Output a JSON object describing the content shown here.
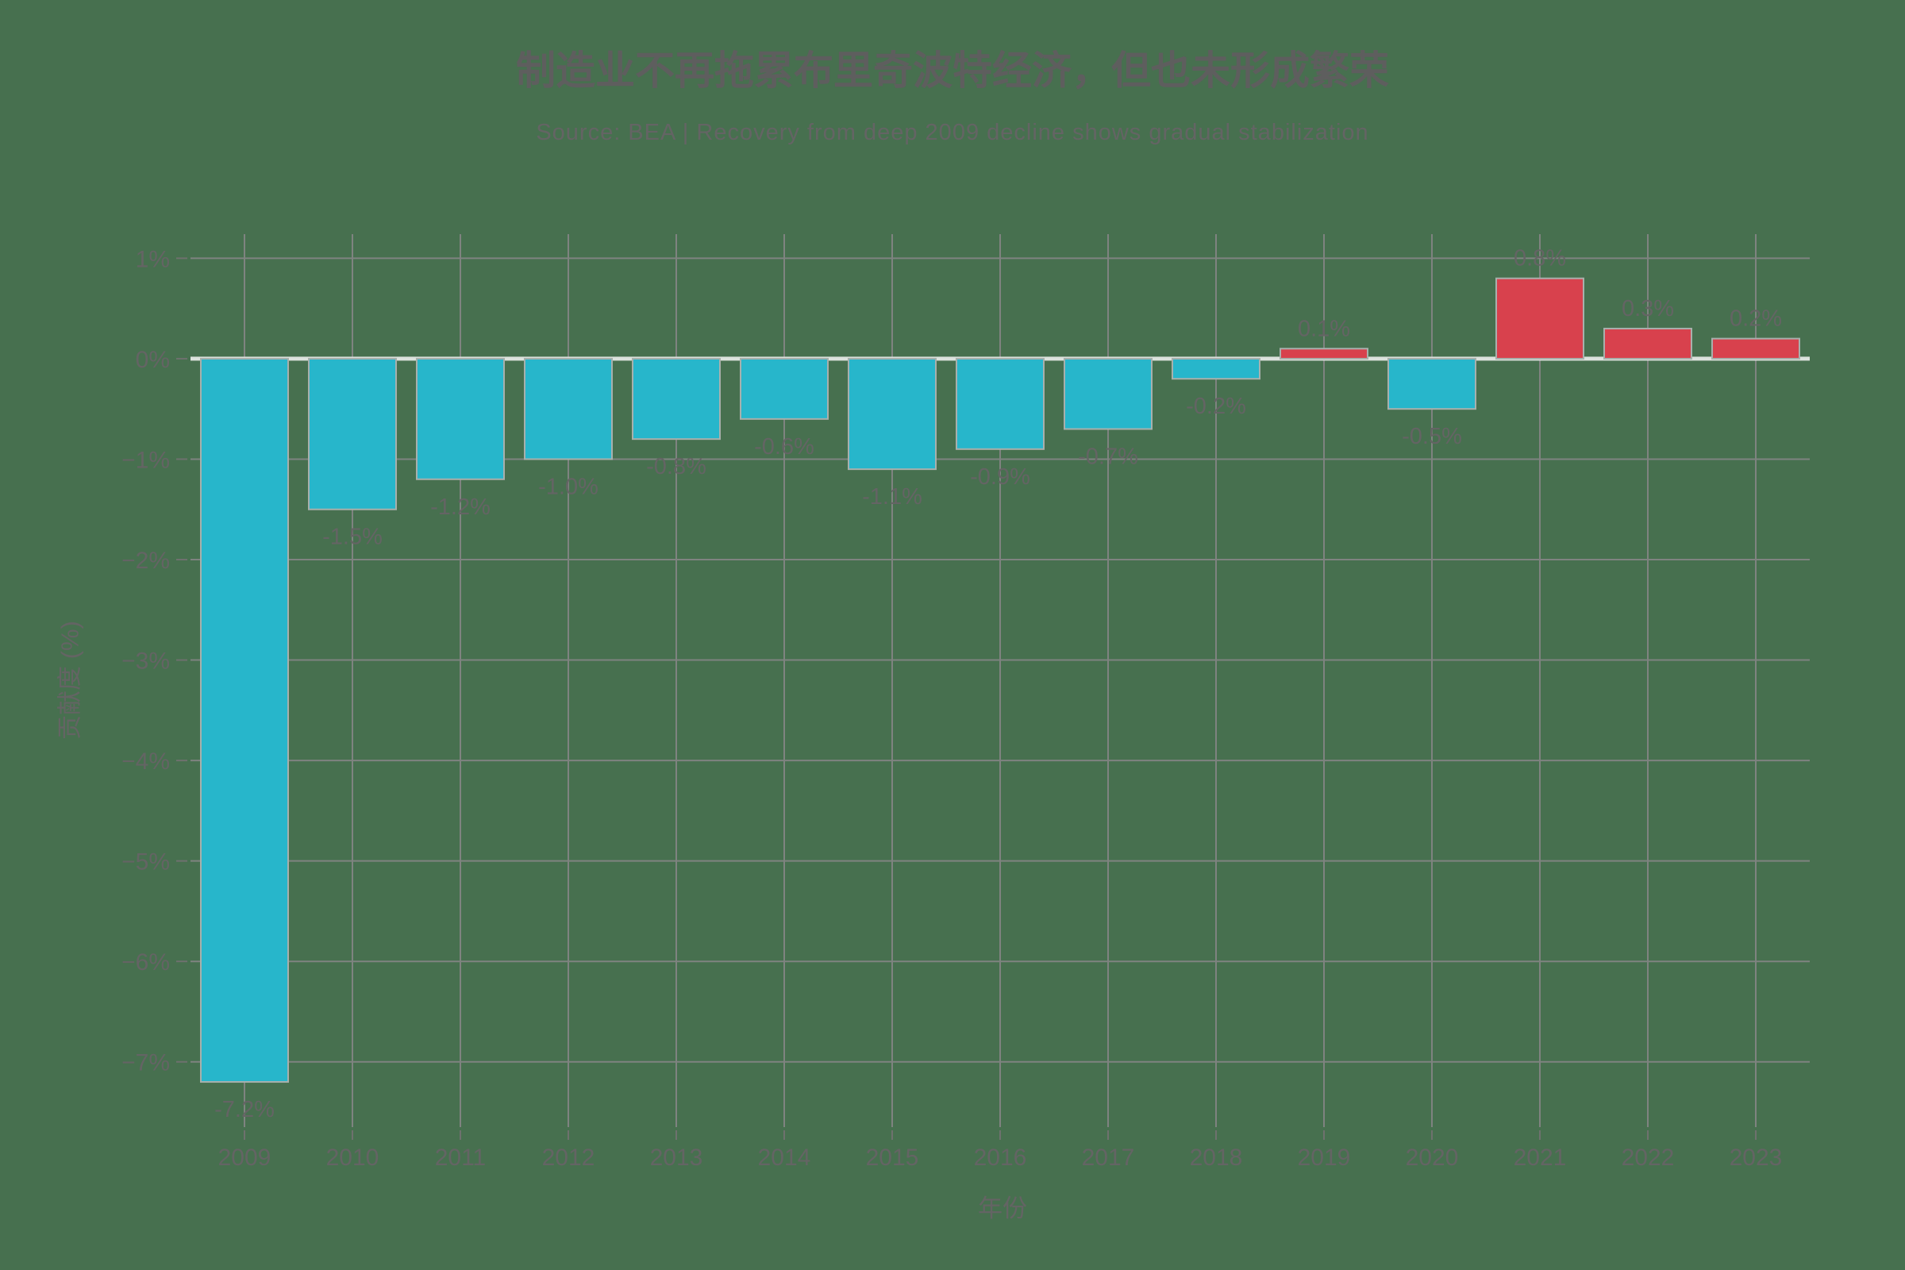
{
  "chart_data": {
    "type": "bar",
    "title": "制造业不再拖累布里奇波特经济，但也未形成繁荣",
    "subtitle": "Source: BEA | Recovery from deep 2009 decline shows gradual stabilization",
    "xlabel": "年份",
    "ylabel": "贡献度 (%)",
    "categories": [
      "2009",
      "2010",
      "2011",
      "2012",
      "2013",
      "2014",
      "2015",
      "2016",
      "2017",
      "2018",
      "2019",
      "2020",
      "2021",
      "2022",
      "2023"
    ],
    "values": [
      -7.2,
      -1.5,
      -1.2,
      -1.0,
      -0.8,
      -0.6,
      -1.1,
      -0.9,
      -0.7,
      -0.2,
      0.1,
      -0.5,
      0.8,
      0.3,
      0.2
    ],
    "value_labels": [
      "-7.2%",
      "-1.5%",
      "-1.2%",
      "-1.0%",
      "-0.8%",
      "-0.6%",
      "-1.1%",
      "-0.9%",
      "-0.7%",
      "-0.2%",
      "0.1%",
      "-0.5%",
      "0.8%",
      "0.3%",
      "0.2%"
    ],
    "yticks": [
      {
        "value": 1,
        "label": "1%"
      },
      {
        "value": 0,
        "label": "0%"
      },
      {
        "value": -1,
        "label": "−1%"
      },
      {
        "value": -2,
        "label": "−2%"
      },
      {
        "value": -3,
        "label": "−3%"
      },
      {
        "value": -4,
        "label": "−4%"
      },
      {
        "value": -5,
        "label": "−5%"
      },
      {
        "value": -6,
        "label": "−6%"
      },
      {
        "value": -7,
        "label": "−7%"
      }
    ],
    "ylim": [
      -7.65,
      1.24
    ],
    "grid": true,
    "legend": "none",
    "colors": {
      "background": "#47704F",
      "negative_bar": "#27B6CB",
      "positive_bar": "#D8414D",
      "bar_border": "#A8B0AC",
      "grid": "#7F8380",
      "zero_line": "#DCE2DD",
      "tick": "#6E716E",
      "text": "#646464",
      "title_text": "#5E5E5E",
      "subtitle_text": "#646464"
    }
  }
}
